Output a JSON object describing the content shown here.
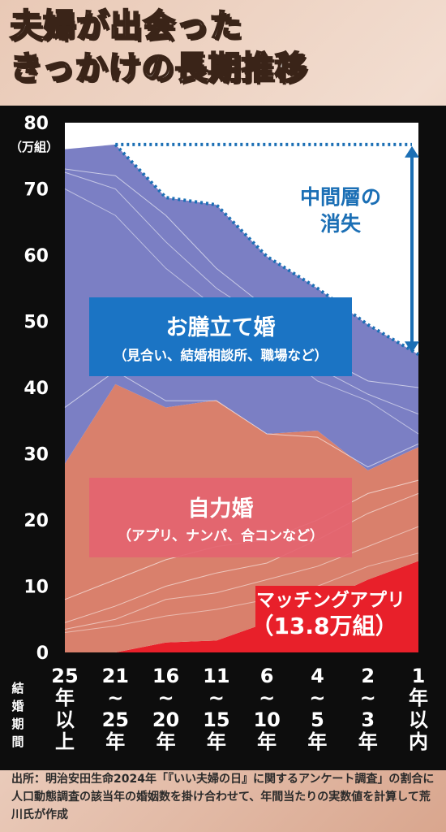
{
  "title_lines": [
    "夫婦が出会った",
    "きっかけの長期推移"
  ],
  "unit_label": "（万組）",
  "xaxis_title": "結婚期間",
  "annotations": {
    "middle_loss": [
      "中間層の",
      "消失"
    ],
    "omiai": {
      "title": "お膳立て婚",
      "sub": "（見合い、結婚相談所、職場など）"
    },
    "jiriki": {
      "title": "自力婚",
      "sub": "（アプリ、ナンパ、合コンなど）"
    },
    "app": {
      "title": "マッチングアプリ",
      "value": "（13.8万組）"
    }
  },
  "source_note": "出所：明治安田生命2024年「『いい夫婦の日』に関するアンケート調査」の割合に人口動態調査の該当年の婚姻数を掛け合わせて、年間当たりの実数値を計算して荒川氏が作成",
  "colors": {
    "omiai": "#7b7fc4",
    "jiriki": "#d9806c",
    "app": "#e8202a",
    "empty": "#ffffff",
    "line": "#1b6fb5"
  },
  "chart_data": {
    "type": "area",
    "stacked": true,
    "x_labels": [
      [
        "25",
        "年",
        "以",
        "上"
      ],
      [
        "21",
        "〜",
        "25",
        "年"
      ],
      [
        "16",
        "〜",
        "20",
        "年"
      ],
      [
        "11",
        "〜",
        "15",
        "年"
      ],
      [
        "6",
        "〜",
        "10",
        "年"
      ],
      [
        "4",
        "〜",
        "5",
        "年"
      ],
      [
        "2",
        "〜",
        "3",
        "年"
      ],
      [
        "1",
        "年",
        "以",
        "内"
      ]
    ],
    "categories": [
      "25年以上",
      "21〜25年",
      "16〜20年",
      "11〜15年",
      "6〜10年",
      "4〜5年",
      "2〜3年",
      "1年以内"
    ],
    "ylim": [
      0,
      80
    ],
    "yticks": [
      0,
      10,
      20,
      30,
      40,
      50,
      60,
      70,
      80
    ],
    "series": [
      {
        "name": "マッチングアプリ",
        "values": [
          0,
          0,
          1.5,
          1.8,
          4.5,
          7.5,
          11,
          13.8
        ]
      },
      {
        "name": "自力婚",
        "values": [
          28.5,
          40.5,
          35.5,
          36.3,
          28.5,
          26,
          16.5,
          17.2
        ]
      },
      {
        "name": "お膳立て婚",
        "values": [
          47.5,
          36.2,
          31.7,
          29.5,
          26.8,
          21.5,
          22,
          14
        ]
      }
    ],
    "totals": [
      76,
      76.7,
      68.7,
      67.6,
      59.8,
      55,
      49.5,
      45
    ]
  }
}
